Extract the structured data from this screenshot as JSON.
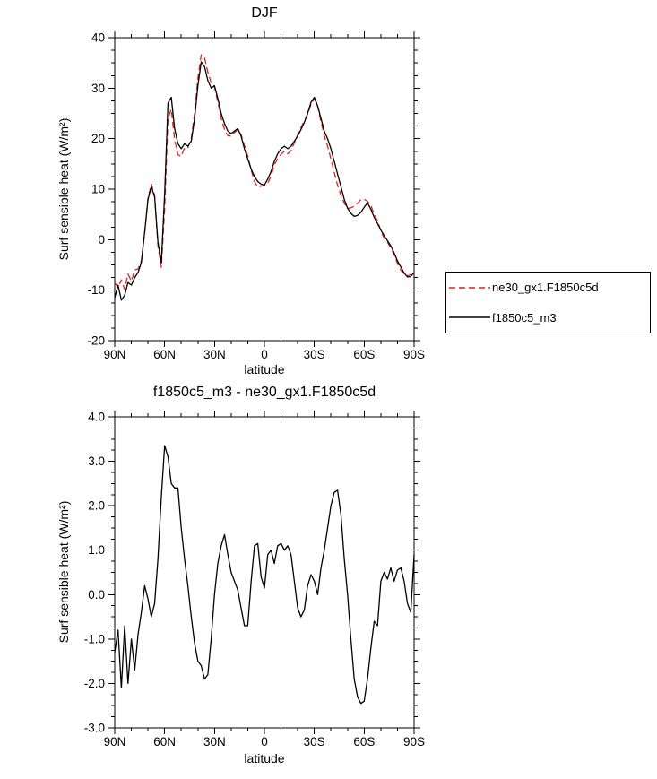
{
  "accent_colors": {
    "red_line": "#e02020",
    "black_line": "#000000",
    "frame": "#000000",
    "background": "#ffffff"
  },
  "chart_data": [
    {
      "type": "line",
      "title": "DJF",
      "xlabel": "latitude",
      "ylabel": "Surf sensible heat (W/m²)",
      "xlim": [
        90,
        -90
      ],
      "ylim": [
        -20,
        40
      ],
      "ymajor": 10,
      "yminor": 2.5,
      "xminor": 10,
      "grid": false,
      "legend_position": "outside-right",
      "xticks": [
        {
          "v": 90,
          "label": "90N"
        },
        {
          "v": 60,
          "label": "60N"
        },
        {
          "v": 30,
          "label": "30N"
        },
        {
          "v": 0,
          "label": "0"
        },
        {
          "v": -30,
          "label": "30S"
        },
        {
          "v": -60,
          "label": "60S"
        },
        {
          "v": -90,
          "label": "90S"
        }
      ],
      "yticks": [
        {
          "v": 40,
          "label": "40"
        },
        {
          "v": 30,
          "label": "30"
        },
        {
          "v": 20,
          "label": "20"
        },
        {
          "v": 10,
          "label": "10"
        },
        {
          "v": 0,
          "label": "0"
        },
        {
          "v": -10,
          "label": "-10"
        },
        {
          "v": -20,
          "label": "-20"
        }
      ],
      "x": [
        90,
        88,
        86,
        84,
        82,
        80,
        78,
        76,
        74,
        72,
        70,
        68,
        66,
        64,
        62,
        60,
        58,
        56,
        54,
        52,
        50,
        48,
        46,
        44,
        42,
        40,
        38,
        36,
        34,
        32,
        30,
        28,
        26,
        24,
        22,
        20,
        18,
        16,
        14,
        12,
        10,
        8,
        6,
        4,
        2,
        0,
        -2,
        -4,
        -6,
        -8,
        -10,
        -12,
        -14,
        -16,
        -18,
        -20,
        -22,
        -24,
        -26,
        -28,
        -30,
        -32,
        -34,
        -36,
        -38,
        -40,
        -42,
        -44,
        -46,
        -48,
        -50,
        -52,
        -54,
        -56,
        -58,
        -60,
        -62,
        -64,
        -66,
        -68,
        -70,
        -72,
        -74,
        -76,
        -78,
        -80,
        -82,
        -84,
        -86,
        -88,
        -90
      ],
      "series": [
        {
          "name": "ne30_gx1.F1850c5d",
          "color": "#e02020",
          "dash": "7 4",
          "values": [
            -8.5,
            -9.5,
            -8,
            -9.8,
            -6.8,
            -8.2,
            -6,
            -5.8,
            -4.2,
            1.3,
            8.2,
            11,
            8.8,
            -1.2,
            -5.5,
            6,
            24,
            25.8,
            19.8,
            16.8,
            16.5,
            18.2,
            18.2,
            20,
            25,
            32,
            36.6,
            36,
            33.2,
            31,
            30.3,
            27.3,
            24,
            21.8,
            20.6,
            20.5,
            21.2,
            21.8,
            20.8,
            18.6,
            16.6,
            13.8,
            11.5,
            10.4,
            10.6,
            10.7,
            11.2,
            12.6,
            14.8,
            16,
            16.9,
            17.5,
            17,
            17.6,
            19.2,
            20.8,
            22.2,
            23.5,
            24.8,
            26.8,
            27.9,
            26.4,
            23.4,
            20.6,
            18.5,
            16,
            13.3,
            10.8,
            8.8,
            7.2,
            6.2,
            6.3,
            6.6,
            7.2,
            7.9,
            8,
            7.6,
            6.8,
            5,
            3.8,
            1.7,
            0.3,
            -0.5,
            -1.7,
            -2.9,
            -4.7,
            -6,
            -6.9,
            -7.2,
            -6.9,
            -7.4
          ]
        },
        {
          "name": "f1850c5_m3",
          "color": "#000000",
          "dash": "",
          "values": [
            -11.5,
            -9,
            -12,
            -11,
            -8.5,
            -9,
            -7.5,
            -6.5,
            -4.5,
            1.5,
            8,
            10.5,
            8.5,
            -0.5,
            -4.5,
            9,
            27,
            28.2,
            22,
            19,
            18,
            19,
            18.5,
            19.5,
            24,
            30.5,
            35.2,
            34.3,
            31.5,
            30,
            30.5,
            28,
            25,
            23,
            21.5,
            21,
            21.5,
            22,
            20.5,
            18,
            16,
            14,
            12.5,
            11.5,
            11,
            10.8,
            12,
            13.5,
            15.5,
            17,
            18,
            18.5,
            18,
            18.5,
            19.5,
            20.5,
            21.8,
            23.2,
            25,
            27.2,
            28.2,
            26.5,
            24,
            21.5,
            20,
            18,
            15.5,
            13,
            10.5,
            8,
            6.2,
            5.2,
            4.6,
            4.8,
            5.4,
            6.4,
            7.3,
            6,
            4.4,
            3.2,
            1.9,
            0.8,
            -0.2,
            -1.2,
            -2.6,
            -4.2,
            -5.4,
            -6.6,
            -7.4,
            -7.3,
            -6.5
          ]
        }
      ]
    },
    {
      "type": "line",
      "title": "f1850c5_m3 - ne30_gx1.F1850c5d",
      "xlabel": "latitude",
      "ylabel": "Surf sensible heat (W/m²)",
      "xlim": [
        90,
        -90
      ],
      "ylim": [
        -3,
        4
      ],
      "ymajor": 1,
      "yminor": 0.25,
      "xminor": 10,
      "grid": false,
      "legend_position": "none",
      "xticks": [
        {
          "v": 90,
          "label": "90N"
        },
        {
          "v": 60,
          "label": "60N"
        },
        {
          "v": 30,
          "label": "30N"
        },
        {
          "v": 0,
          "label": "0"
        },
        {
          "v": -30,
          "label": "30S"
        },
        {
          "v": -60,
          "label": "60S"
        },
        {
          "v": -90,
          "label": "90S"
        }
      ],
      "yticks": [
        {
          "v": 4,
          "label": "4.0"
        },
        {
          "v": 3,
          "label": "3.0"
        },
        {
          "v": 2,
          "label": "2.0"
        },
        {
          "v": 1,
          "label": "1.0"
        },
        {
          "v": 0,
          "label": "0.0"
        },
        {
          "v": -1,
          "label": "-1.0"
        },
        {
          "v": -2,
          "label": "-2.0"
        },
        {
          "v": -3,
          "label": "-3.0"
        }
      ],
      "x": [
        90,
        88,
        86,
        84,
        82,
        80,
        78,
        76,
        74,
        72,
        70,
        68,
        66,
        64,
        62,
        60,
        58,
        56,
        54,
        52,
        50,
        48,
        46,
        44,
        42,
        40,
        38,
        36,
        34,
        32,
        30,
        28,
        26,
        24,
        22,
        20,
        18,
        16,
        14,
        12,
        10,
        8,
        6,
        4,
        2,
        0,
        -2,
        -4,
        -6,
        -8,
        -10,
        -12,
        -14,
        -16,
        -18,
        -20,
        -22,
        -24,
        -26,
        -28,
        -30,
        -32,
        -34,
        -36,
        -38,
        -40,
        -42,
        -44,
        -46,
        -48,
        -50,
        -52,
        -54,
        -56,
        -58,
        -60,
        -62,
        -64,
        -66,
        -68,
        -70,
        -72,
        -74,
        -76,
        -78,
        -80,
        -82,
        -84,
        -86,
        -88,
        -90
      ],
      "series": [
        {
          "name": "f1850c5_m3 - ne30_gx1.F1850c5d",
          "color": "#000000",
          "dash": "",
          "values": [
            -1.3,
            -0.8,
            -2.1,
            -0.7,
            -2,
            -1,
            -1.7,
            -0.9,
            -0.4,
            0.2,
            -0.1,
            -0.5,
            -0.2,
            0.8,
            2.2,
            3.35,
            3.1,
            2.5,
            2.4,
            2.4,
            1.5,
            0.8,
            0.2,
            -0.5,
            -1.1,
            -1.5,
            -1.6,
            -1.9,
            -1.8,
            -1,
            0,
            0.7,
            1.1,
            1.35,
            0.9,
            0.5,
            0.3,
            0.1,
            -0.3,
            -0.7,
            -0.7,
            0.3,
            1.1,
            1.15,
            0.4,
            0.15,
            0.9,
            1,
            0.7,
            1.1,
            1.15,
            1,
            1.1,
            0.9,
            0.3,
            -0.3,
            -0.5,
            -0.35,
            0.2,
            0.45,
            0.3,
            0,
            0.6,
            1,
            1.5,
            2,
            2.3,
            2.35,
            1.8,
            0.8,
            0,
            -1,
            -1.9,
            -2.3,
            -2.45,
            -2.4,
            -1.9,
            -1.2,
            -0.6,
            -0.7,
            0.3,
            0.5,
            0.35,
            0.6,
            0.3,
            0.55,
            0.6,
            0.3,
            -0.2,
            -0.4,
            0.9
          ]
        }
      ]
    }
  ]
}
